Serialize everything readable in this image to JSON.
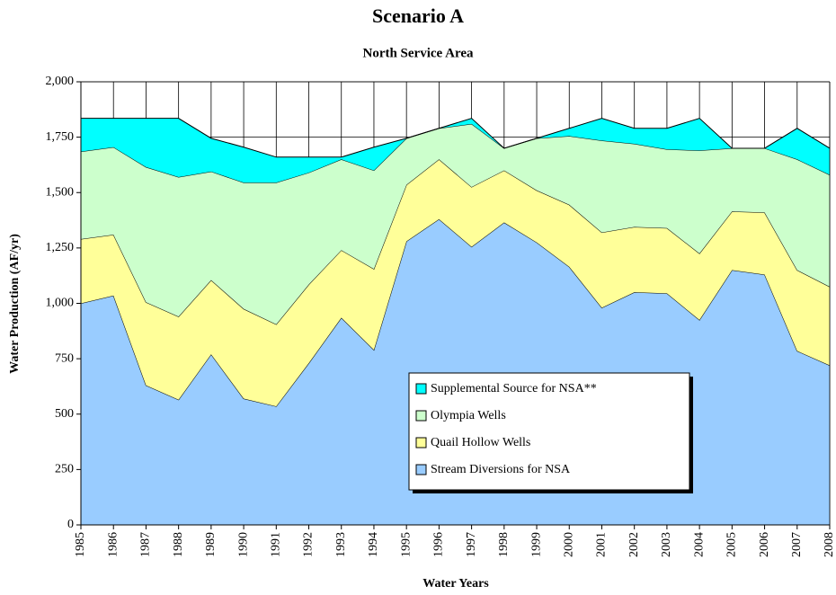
{
  "chart_data": {
    "type": "stacked_area",
    "title": "Scenario A",
    "subtitle": "North Service Area",
    "x_label": "Water Years",
    "y_label": "Water Production (AF/yr)",
    "categories": [
      "1985",
      "1986",
      "1987",
      "1988",
      "1989",
      "1990",
      "1991",
      "1992",
      "1993",
      "1994",
      "1995",
      "1996",
      "1997",
      "1998",
      "1999",
      "2000",
      "2001",
      "2002",
      "2003",
      "2004",
      "2005",
      "2006",
      "2007",
      "2008"
    ],
    "series": [
      {
        "name": "Stream Diversions for NSA",
        "color": "#99ccff",
        "values": [
          1000,
          1035,
          630,
          565,
          770,
          570,
          535,
          730,
          935,
          790,
          1280,
          1380,
          1255,
          1365,
          1275,
          1165,
          980,
          1050,
          1045,
          925,
          1150,
          1130,
          785,
          720
        ]
      },
      {
        "name": "Quail Hollow Wells",
        "color": "#ffff99",
        "values": [
          290,
          275,
          375,
          375,
          335,
          405,
          370,
          355,
          305,
          365,
          255,
          270,
          270,
          235,
          235,
          280,
          340,
          295,
          295,
          300,
          265,
          280,
          365,
          355
        ]
      },
      {
        "name": "Olympia Wells",
        "color": "#ccffcc",
        "values": [
          395,
          395,
          610,
          630,
          490,
          570,
          640,
          505,
          410,
          445,
          210,
          140,
          285,
          100,
          235,
          310,
          415,
          375,
          355,
          465,
          285,
          290,
          500,
          505
        ]
      },
      {
        "name": "Supplemental Source for NSA**",
        "color": "#00ffff",
        "values": [
          150,
          130,
          220,
          265,
          150,
          160,
          115,
          70,
          10,
          105,
          0,
          0,
          25,
          0,
          0,
          35,
          100,
          70,
          95,
          145,
          0,
          0,
          140,
          120
        ]
      }
    ],
    "ylim": [
      0,
      2000
    ],
    "yticks": [
      0,
      250,
      500,
      750,
      {
        "value": 1000,
        "label": "1,000"
      },
      {
        "value": 1250,
        "label": "1,250"
      },
      {
        "value": 1500,
        "label": "1,500"
      },
      {
        "value": 1750,
        "label": "1,750"
      },
      {
        "value": 2000,
        "label": "2,000"
      }
    ],
    "grid": true
  }
}
